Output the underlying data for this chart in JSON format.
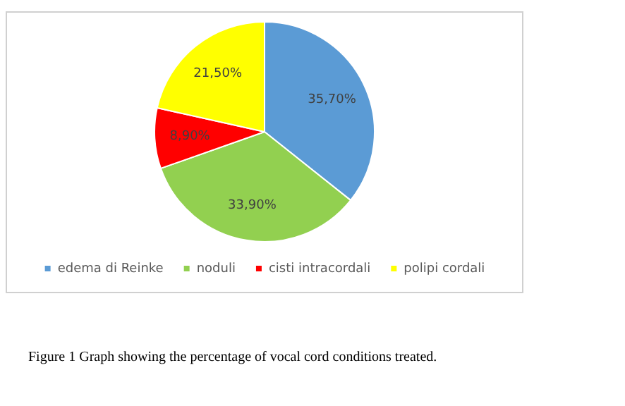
{
  "chart_data": {
    "type": "pie",
    "categories": [
      "edema di Reinke",
      "noduli",
      "cisti intracordali",
      "polipi cordali"
    ],
    "values": [
      35.7,
      33.9,
      8.9,
      21.5
    ],
    "colors": [
      "#5b9bd5",
      "#92d050",
      "#ff0000",
      "#ffff00"
    ],
    "value_labels": [
      "35,70%",
      "33,90%",
      "8,90%",
      "21,50%"
    ],
    "legend": "bottom",
    "annotations": [
      "Figure 1 Graph showing the percentage of vocal cord conditions treated."
    ]
  }
}
